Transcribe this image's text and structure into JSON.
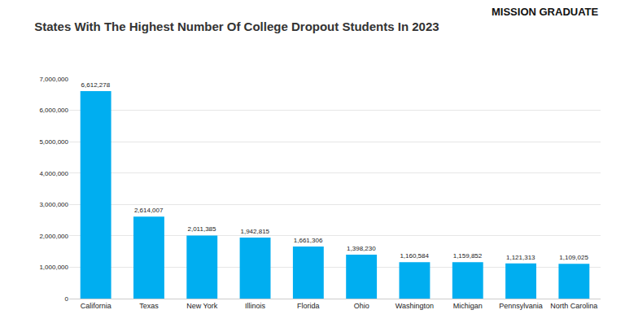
{
  "chart_data": {
    "type": "bar",
    "title": "States With The Highest Number Of College Dropout Students In 2023",
    "annotations": [
      "MISSION GRADUATE"
    ],
    "categories": [
      "California",
      "Texas",
      "New York",
      "Illinois",
      "Florida",
      "Ohio",
      "Washington",
      "Michigan",
      "Pennsylvania",
      "North Carolina"
    ],
    "values": [
      6612278,
      2614007,
      2011385,
      1942815,
      1661306,
      1398230,
      1160584,
      1159852,
      1121313,
      1109025
    ],
    "value_labels": [
      "6,612,278",
      "2,614,007",
      "2,011,385",
      "1,942,815",
      "1,661,306",
      "1,398,230",
      "1,160,584",
      "1,159,852",
      "1,121,313",
      "1,109,025"
    ],
    "color": "#00aef0",
    "ylim": [
      0,
      7000000
    ],
    "yticks": [
      0,
      {
        "value": 1000000,
        "label": "1,000,000"
      },
      {
        "value": 2000000,
        "label": "2,000,000"
      },
      {
        "value": 3000000,
        "label": "3,000,000"
      },
      {
        "value": 4000000,
        "label": "4,000,000"
      },
      {
        "value": 5000000,
        "label": "5,000,000"
      },
      {
        "value": 6000000,
        "label": "6,000,000"
      },
      {
        "value": 7000000,
        "label": "7,000,000"
      }
    ],
    "grid": true,
    "data_labels": true
  }
}
